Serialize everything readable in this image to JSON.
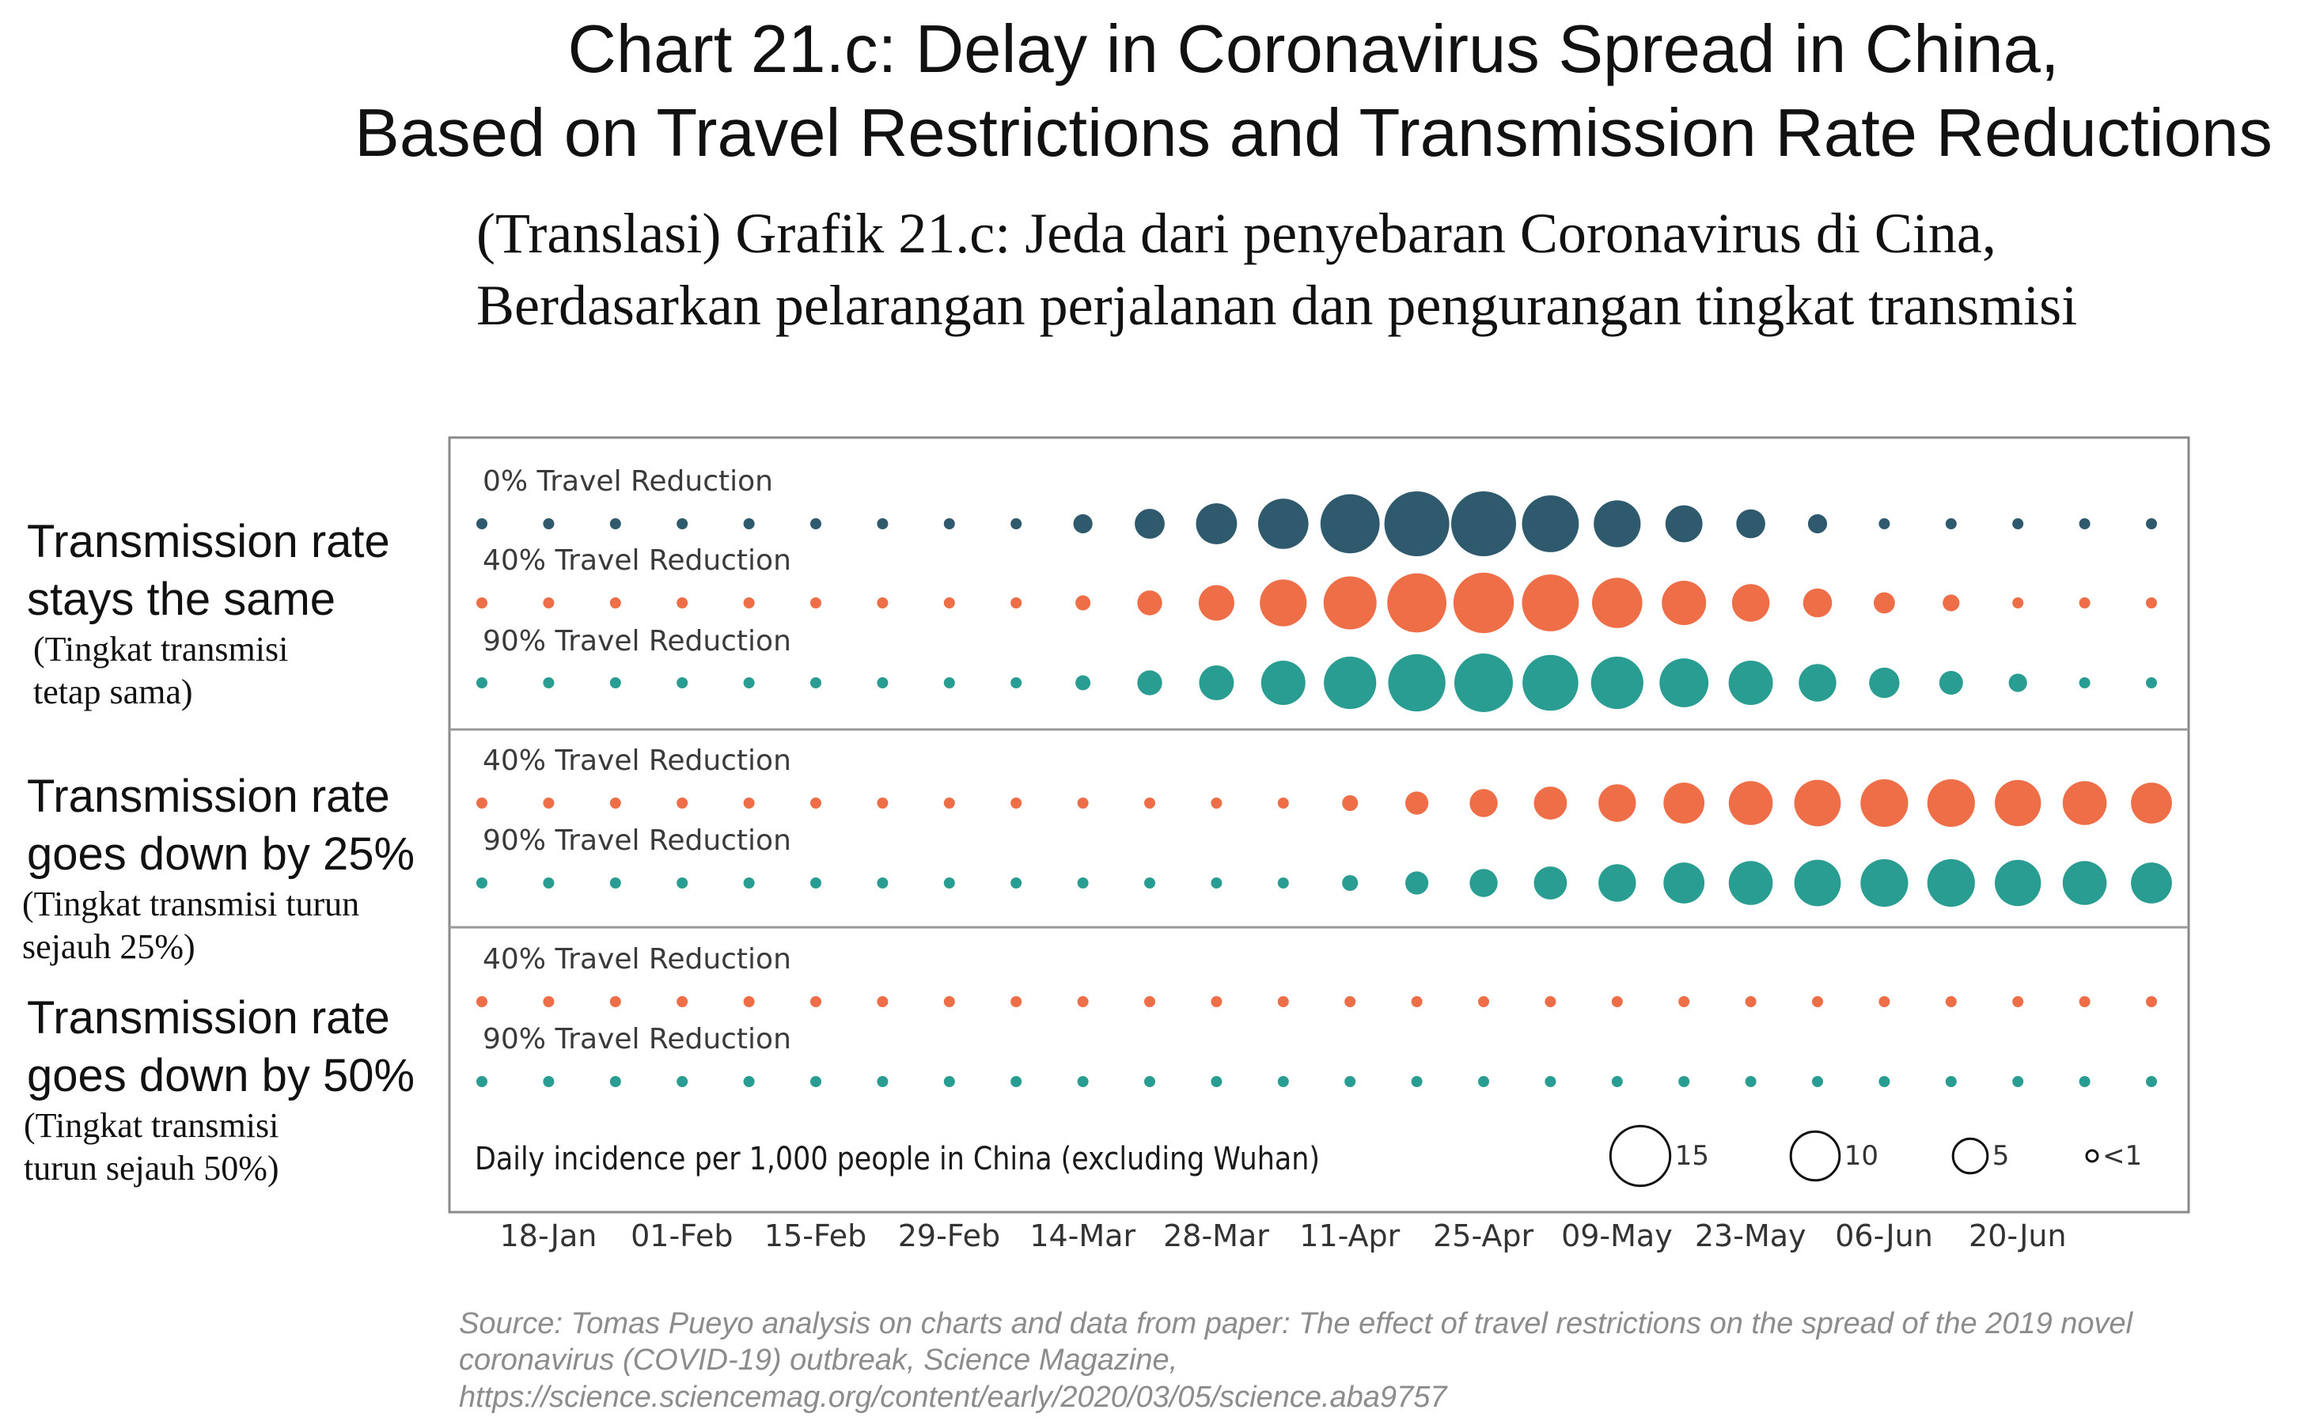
{
  "title": {
    "line1": "Chart 21.c: Delay in Coronavirus Spread in China,",
    "line2": "Based on Travel Restrictions and Transmission Rate Reductions"
  },
  "translation": {
    "line1": "(Translasi) Grafik 21.c: Jeda dari penyebaran Coronavirus di Cina,",
    "line2": "Berdasarkan pelarangan perjalanan dan pengurangan tingkat transmisi"
  },
  "groups": [
    {
      "line1": "Transmission rate",
      "line2": "stays the same",
      "trans1": "(Tingkat transmisi",
      "trans2": "tetap sama)"
    },
    {
      "line1": "Transmission rate",
      "line2": "goes down by 25%",
      "trans1": "(Tingkat transmisi turun",
      "trans2": "sejauh 25%)"
    },
    {
      "line1": "Transmission rate",
      "line2": "goes down by 50%",
      "trans1": "(Tingkat transmisi",
      "trans2": "turun sejauh 50%)"
    }
  ],
  "colors": {
    "dark": "#2f5a6e",
    "orange": "#ee6e48",
    "teal": "#2a9d93",
    "frame": "#8a8a8a"
  },
  "chart_data": {
    "type": "bubble",
    "measure": "Daily incidence per 1,000 people in China (excluding Wuhan)",
    "x_tick_labels": [
      "18-Jan",
      "01-Feb",
      "15-Feb",
      "29-Feb",
      "14-Mar",
      "28-Mar",
      "11-Apr",
      "25-Apr",
      "09-May",
      "23-May",
      "06-Jun",
      "20-Jun"
    ],
    "rows": [
      {
        "panel": 0,
        "label": "0% Travel Reduction",
        "color": "dark",
        "values": [
          0.4,
          0.4,
          0.4,
          0.4,
          0.4,
          0.4,
          0.4,
          0.4,
          0.4,
          1.3,
          3.2,
          6.0,
          9.0,
          12.5,
          15.0,
          15.0,
          11.5,
          7.8,
          4.9,
          3.0,
          1.3,
          0.4,
          0.4,
          0.4,
          0.4,
          0.4
        ]
      },
      {
        "panel": 0,
        "label": "40% Travel Reduction",
        "color": "orange",
        "values": [
          0.4,
          0.4,
          0.4,
          0.4,
          0.4,
          0.4,
          0.4,
          0.4,
          0.4,
          0.8,
          2.2,
          4.5,
          7.8,
          10.0,
          12.5,
          13.0,
          11.5,
          9.0,
          7.0,
          5.0,
          3.0,
          1.6,
          1.0,
          0.4,
          0.4,
          0.4
        ]
      },
      {
        "panel": 0,
        "label": "90% Travel Reduction",
        "color": "teal",
        "values": [
          0.4,
          0.4,
          0.4,
          0.4,
          0.4,
          0.4,
          0.4,
          0.4,
          0.4,
          0.8,
          2.2,
          4.3,
          7.0,
          9.8,
          11.7,
          12.2,
          11.1,
          9.8,
          8.5,
          7.0,
          5.0,
          3.3,
          2.0,
          1.2,
          0.4,
          0.4
        ]
      },
      {
        "panel": 1,
        "label": "40% Travel Reduction",
        "color": "orange",
        "values": [
          0.4,
          0.4,
          0.4,
          0.4,
          0.4,
          0.4,
          0.4,
          0.4,
          0.4,
          0.4,
          0.4,
          0.4,
          0.4,
          0.9,
          1.9,
          2.8,
          3.9,
          5.0,
          6.0,
          6.9,
          7.7,
          8.1,
          8.1,
          7.6,
          6.9,
          6.0
        ]
      },
      {
        "panel": 1,
        "label": "90% Travel Reduction",
        "color": "teal",
        "values": [
          0.4,
          0.4,
          0.4,
          0.4,
          0.4,
          0.4,
          0.4,
          0.4,
          0.4,
          0.4,
          0.4,
          0.4,
          0.4,
          0.9,
          1.9,
          2.8,
          3.9,
          5.0,
          6.0,
          6.9,
          7.7,
          8.1,
          8.1,
          7.6,
          6.9,
          6.0
        ]
      },
      {
        "panel": 2,
        "label": "40% Travel Reduction",
        "color": "orange",
        "values": [
          0.4,
          0.4,
          0.4,
          0.4,
          0.4,
          0.4,
          0.4,
          0.4,
          0.4,
          0.4,
          0.4,
          0.4,
          0.4,
          0.4,
          0.4,
          0.4,
          0.4,
          0.4,
          0.4,
          0.4,
          0.4,
          0.4,
          0.4,
          0.4,
          0.4,
          0.4
        ]
      },
      {
        "panel": 2,
        "label": "90% Travel Reduction",
        "color": "teal",
        "values": [
          0.4,
          0.4,
          0.4,
          0.4,
          0.4,
          0.4,
          0.4,
          0.4,
          0.4,
          0.4,
          0.4,
          0.4,
          0.4,
          0.4,
          0.4,
          0.4,
          0.4,
          0.4,
          0.4,
          0.4,
          0.4,
          0.4,
          0.4,
          0.4,
          0.4,
          0.4
        ]
      }
    ],
    "size_legend": [
      {
        "label": "15",
        "value": 15
      },
      {
        "label": "10",
        "value": 10
      },
      {
        "label": "5",
        "value": 5
      },
      {
        "label": "<1",
        "value": 0.4
      }
    ]
  },
  "source": {
    "line1": "Source: Tomas Pueyo analysis on charts and data from paper: The effect of travel restrictions on the spread of the 2019 novel",
    "line2": "coronavirus (COVID-19) outbreak, Science Magazine,",
    "line3": "https://science.sciencemag.org/content/early/2020/03/05/science.aba9757"
  }
}
